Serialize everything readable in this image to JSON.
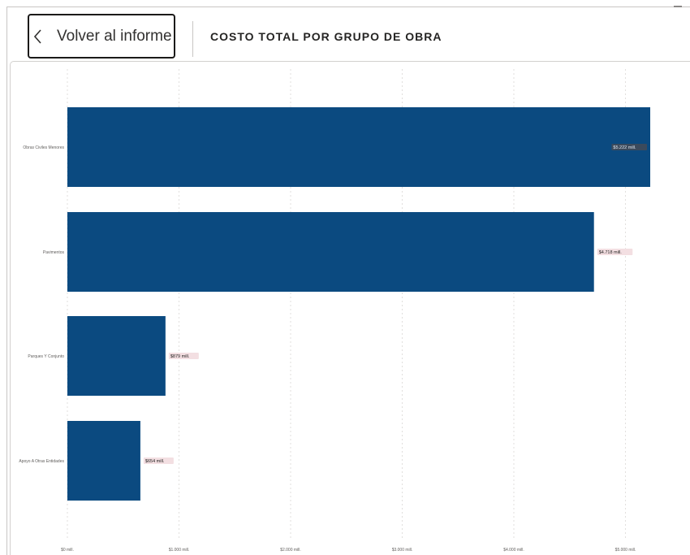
{
  "header": {
    "back_label": "Volver al informe",
    "title": "COSTO TOTAL POR GRUPO DE OBRA"
  },
  "icons": {
    "back": "chevron-left-icon"
  },
  "colors": {
    "bar": "#0b4a80",
    "data_label_bg": "#f3dfe2",
    "grid": "#e1dfdd"
  },
  "chart_data": {
    "type": "bar",
    "orientation": "horizontal",
    "title": "COSTO TOTAL POR GRUPO DE OBRA",
    "categories": [
      "Obras Civiles Menores",
      "Pavimentos",
      "Parques Y Conjunto",
      "Apoyo A Otras Entidades"
    ],
    "values": [
      5222,
      4718,
      879,
      654
    ],
    "data_labels": [
      "$5.222 mill.",
      "$4.718 mill.",
      "$879 mill.",
      "$654 mill."
    ],
    "xticks": [
      0,
      1000,
      2000,
      3000,
      4000,
      5000
    ],
    "xtick_labels": [
      "$0 mill.",
      "$1.000 mill.",
      "$2.000 mill.",
      "$3.000 mill.",
      "$4.000 mill.",
      "$5.000 mill."
    ],
    "xlim": [
      0,
      5222
    ],
    "grid": true,
    "xlabel": "",
    "ylabel": ""
  }
}
